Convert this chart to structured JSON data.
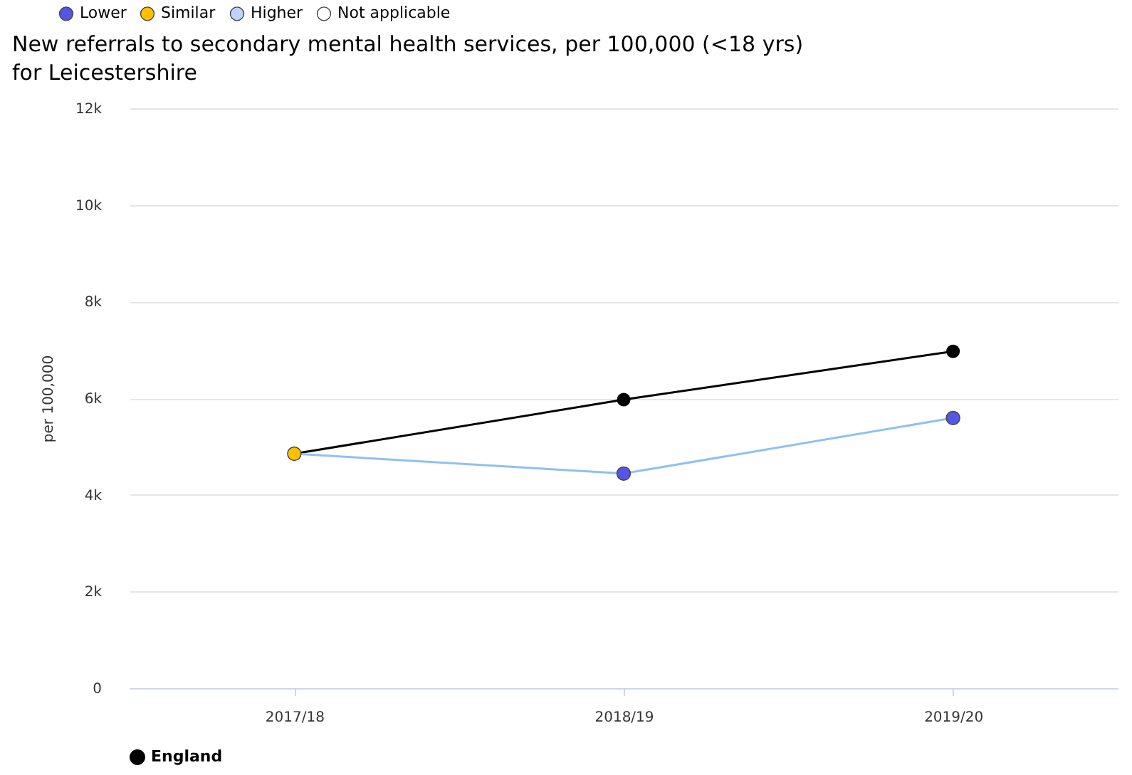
{
  "chart_data": {
    "type": "line",
    "title": "New referrals to secondary mental health services, per 100,000 (<18 yrs) for Leicestershire",
    "ylabel": "per 100,000",
    "categories": [
      "2017/18",
      "2018/19",
      "2019/20"
    ],
    "series": [
      {
        "name": "England",
        "type": "line",
        "color": "#000000",
        "values": [
          4850,
          5970,
          6970
        ],
        "marker": "circle"
      },
      {
        "type": "line",
        "color": "#90c0f0",
        "values": [
          4850,
          4440,
          5590
        ],
        "marker": "none"
      },
      {
        "name": "Lower",
        "type": "scatter",
        "color": "#5555e6",
        "values": [
          null,
          4440,
          5590
        ]
      },
      {
        "name": "Similar",
        "type": "scatter",
        "color": "#ffc000",
        "values": [
          4850,
          null,
          null
        ]
      },
      {
        "name": "Higher",
        "type": "scatter",
        "color": "#bed2ff",
        "values": [
          null,
          null,
          null
        ]
      },
      {
        "name": "Not applicable",
        "type": "scatter",
        "color": "#ffffff",
        "values": [
          null,
          null,
          null
        ]
      }
    ],
    "ylim": [
      0,
      12000
    ],
    "yticks": [
      {
        "value": 0,
        "label": "0"
      },
      {
        "value": 2000,
        "label": "2k"
      },
      {
        "value": 4000,
        "label": "4k"
      },
      {
        "value": 6000,
        "label": "6k"
      },
      {
        "value": 8000,
        "label": "8k"
      },
      {
        "value": 10000,
        "label": "10k"
      },
      {
        "value": 12000,
        "label": "12k"
      }
    ],
    "grid": "y",
    "legend": "top left"
  }
}
